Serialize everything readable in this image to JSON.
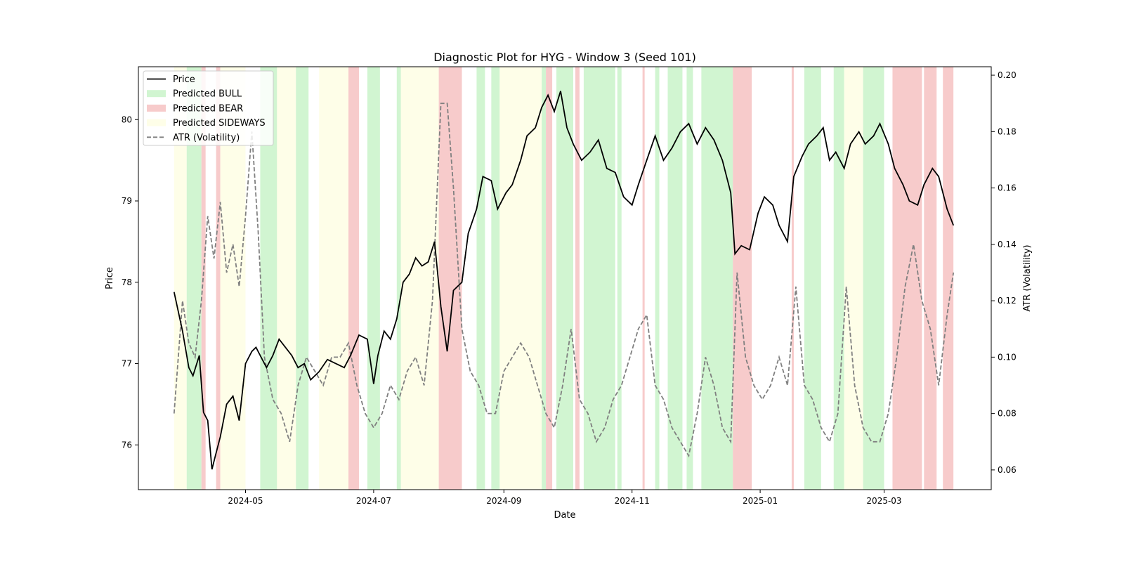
{
  "chart_data": {
    "type": "line",
    "title": "Diagnostic Plot for HYG - Window 3 (Seed 101)",
    "xlabel": "Date",
    "ylabel": "Price",
    "y2label": "ATR (Volatility)",
    "xlim": [
      "2024-03-11",
      "2025-04-21"
    ],
    "ylim": [
      75.45,
      80.65
    ],
    "y2lim": [
      0.053,
      0.203
    ],
    "x_ticks": [
      "2024-05-01",
      "2024-07-01",
      "2024-09-01",
      "2024-11-01",
      "2025-01-01",
      "2025-03-01"
    ],
    "x_tick_labels": [
      "2024-05",
      "2024-07",
      "2024-09",
      "2024-11",
      "2025-01",
      "2025-03"
    ],
    "y_ticks": [
      76,
      77,
      78,
      79,
      80
    ],
    "y2_ticks": [
      0.06,
      0.08,
      0.1,
      0.12,
      0.14,
      0.16,
      0.18,
      0.2
    ],
    "grid": false,
    "legend_position": "top-left",
    "legend": [
      {
        "label": "Price",
        "kind": "line",
        "color": "#000000"
      },
      {
        "label": "Predicted BULL",
        "kind": "patch",
        "color": "#d1f5d1"
      },
      {
        "label": "Predicted BEAR",
        "kind": "patch",
        "color": "#f7cbcb"
      },
      {
        "label": "Predicted SIDEWAYS",
        "kind": "patch",
        "color": "#fefee8"
      },
      {
        "label": "ATR (Volatility)",
        "kind": "dashed",
        "color": "#808080"
      }
    ],
    "colors": {
      "bull": "#d1f5d1",
      "bear": "#f7cbcb",
      "sideways": "#fefee8",
      "price": "#000000",
      "atr": "#808080"
    },
    "regimes": [
      {
        "start": "2024-03-28",
        "end": "2024-04-03",
        "state": "sideways"
      },
      {
        "start": "2024-04-03",
        "end": "2024-04-10",
        "state": "bull"
      },
      {
        "start": "2024-04-10",
        "end": "2024-04-12",
        "state": "bear"
      },
      {
        "start": "2024-04-17",
        "end": "2024-04-19",
        "state": "bear"
      },
      {
        "start": "2024-04-19",
        "end": "2024-05-01",
        "state": "sideways"
      },
      {
        "start": "2024-05-08",
        "end": "2024-05-16",
        "state": "bull"
      },
      {
        "start": "2024-05-16",
        "end": "2024-05-25",
        "state": "sideways"
      },
      {
        "start": "2024-05-25",
        "end": "2024-05-31",
        "state": "bull"
      },
      {
        "start": "2024-06-05",
        "end": "2024-06-19",
        "state": "sideways"
      },
      {
        "start": "2024-06-19",
        "end": "2024-06-24",
        "state": "bear"
      },
      {
        "start": "2024-06-28",
        "end": "2024-07-04",
        "state": "bull"
      },
      {
        "start": "2024-07-12",
        "end": "2024-07-14",
        "state": "bull"
      },
      {
        "start": "2024-07-14",
        "end": "2024-08-01",
        "state": "sideways"
      },
      {
        "start": "2024-08-01",
        "end": "2024-08-12",
        "state": "bear"
      },
      {
        "start": "2024-08-19",
        "end": "2024-08-23",
        "state": "bull"
      },
      {
        "start": "2024-08-26",
        "end": "2024-08-30",
        "state": "bull"
      },
      {
        "start": "2024-08-30",
        "end": "2024-09-19",
        "state": "sideways"
      },
      {
        "start": "2024-09-19",
        "end": "2024-09-21",
        "state": "bull"
      },
      {
        "start": "2024-09-21",
        "end": "2024-09-24",
        "state": "bear"
      },
      {
        "start": "2024-09-26",
        "end": "2024-10-04",
        "state": "bull"
      },
      {
        "start": "2024-10-05",
        "end": "2024-10-07",
        "state": "bear"
      },
      {
        "start": "2024-10-09",
        "end": "2024-10-24",
        "state": "bull"
      },
      {
        "start": "2024-10-25",
        "end": "2024-10-27",
        "state": "bull"
      },
      {
        "start": "2024-11-06",
        "end": "2024-11-07",
        "state": "bear"
      },
      {
        "start": "2024-11-12",
        "end": "2024-11-14",
        "state": "bull"
      },
      {
        "start": "2024-11-18",
        "end": "2024-11-25",
        "state": "bull"
      },
      {
        "start": "2024-11-27",
        "end": "2024-11-30",
        "state": "bull"
      },
      {
        "start": "2024-12-04",
        "end": "2024-12-19",
        "state": "bull"
      },
      {
        "start": "2024-12-19",
        "end": "2024-12-28",
        "state": "bear"
      },
      {
        "start": "2025-01-16",
        "end": "2025-01-17",
        "state": "bear"
      },
      {
        "start": "2025-01-22",
        "end": "2025-01-30",
        "state": "bull"
      },
      {
        "start": "2025-02-05",
        "end": "2025-02-10",
        "state": "bull"
      },
      {
        "start": "2025-02-10",
        "end": "2025-02-19",
        "state": "sideways"
      },
      {
        "start": "2025-02-19",
        "end": "2025-03-01",
        "state": "bull"
      },
      {
        "start": "2025-03-05",
        "end": "2025-03-19",
        "state": "bear"
      },
      {
        "start": "2025-03-20",
        "end": "2025-03-26",
        "state": "bear"
      },
      {
        "start": "2025-03-29",
        "end": "2025-04-03",
        "state": "bear"
      }
    ],
    "series": [
      {
        "name": "Price",
        "style": "solid",
        "x": [
          "2024-03-28",
          "2024-04-01",
          "2024-04-04",
          "2024-04-06",
          "2024-04-09",
          "2024-04-11",
          "2024-04-13",
          "2024-04-15",
          "2024-04-17",
          "2024-04-19",
          "2024-04-22",
          "2024-04-25",
          "2024-04-28",
          "2024-05-01",
          "2024-05-04",
          "2024-05-06",
          "2024-05-08",
          "2024-05-11",
          "2024-05-14",
          "2024-05-17",
          "2024-05-20",
          "2024-05-23",
          "2024-05-26",
          "2024-05-29",
          "2024-06-01",
          "2024-06-05",
          "2024-06-09",
          "2024-06-13",
          "2024-06-17",
          "2024-06-20",
          "2024-06-24",
          "2024-06-28",
          "2024-07-01",
          "2024-07-03",
          "2024-07-06",
          "2024-07-09",
          "2024-07-12",
          "2024-07-15",
          "2024-07-18",
          "2024-07-21",
          "2024-07-24",
          "2024-07-27",
          "2024-07-30",
          "2024-08-02",
          "2024-08-05",
          "2024-08-08",
          "2024-08-12",
          "2024-08-15",
          "2024-08-19",
          "2024-08-22",
          "2024-08-26",
          "2024-08-29",
          "2024-09-02",
          "2024-09-05",
          "2024-09-09",
          "2024-09-12",
          "2024-09-16",
          "2024-09-19",
          "2024-09-22",
          "2024-09-25",
          "2024-09-28",
          "2024-10-01",
          "2024-10-04",
          "2024-10-08",
          "2024-10-12",
          "2024-10-16",
          "2024-10-20",
          "2024-10-24",
          "2024-10-28",
          "2024-11-01",
          "2024-11-04",
          "2024-11-08",
          "2024-11-12",
          "2024-11-16",
          "2024-11-20",
          "2024-11-24",
          "2024-11-28",
          "2024-12-02",
          "2024-12-06",
          "2024-12-10",
          "2024-12-14",
          "2024-12-18",
          "2024-12-20",
          "2024-12-23",
          "2024-12-27",
          "2024-12-31",
          "2025-01-03",
          "2025-01-07",
          "2025-01-10",
          "2025-01-14",
          "2025-01-17",
          "2025-01-21",
          "2025-01-24",
          "2025-01-28",
          "2025-01-31",
          "2025-02-03",
          "2025-02-06",
          "2025-02-10",
          "2025-02-13",
          "2025-02-17",
          "2025-02-20",
          "2025-02-24",
          "2025-02-27",
          "2025-03-03",
          "2025-03-06",
          "2025-03-10",
          "2025-03-13",
          "2025-03-17",
          "2025-03-20",
          "2025-03-24",
          "2025-03-27",
          "2025-03-31",
          "2025-04-03"
        ],
        "values": [
          77.88,
          77.4,
          76.95,
          76.85,
          77.1,
          76.4,
          76.3,
          75.7,
          75.9,
          76.1,
          76.5,
          76.6,
          76.3,
          77.0,
          77.15,
          77.2,
          77.1,
          76.95,
          77.1,
          77.3,
          77.2,
          77.1,
          76.95,
          77.0,
          76.8,
          76.9,
          77.05,
          77.0,
          76.95,
          77.1,
          77.35,
          77.3,
          76.75,
          77.1,
          77.4,
          77.3,
          77.55,
          78.0,
          78.1,
          78.3,
          78.2,
          78.25,
          78.5,
          77.7,
          77.15,
          77.9,
          78.0,
          78.6,
          78.9,
          79.3,
          79.25,
          78.9,
          79.1,
          79.2,
          79.5,
          79.8,
          79.9,
          80.15,
          80.3,
          80.1,
          80.35,
          79.9,
          79.7,
          79.5,
          79.6,
          79.75,
          79.4,
          79.35,
          79.05,
          78.95,
          79.2,
          79.5,
          79.8,
          79.5,
          79.65,
          79.85,
          79.95,
          79.7,
          79.9,
          79.75,
          79.5,
          79.1,
          78.35,
          78.45,
          78.4,
          78.85,
          79.05,
          78.95,
          78.7,
          78.5,
          79.3,
          79.55,
          79.7,
          79.8,
          79.9,
          79.5,
          79.6,
          79.4,
          79.7,
          79.85,
          79.7,
          79.8,
          79.95,
          79.7,
          79.4,
          79.2,
          79.0,
          78.95,
          79.2,
          79.4,
          79.3,
          78.9,
          78.7
        ]
      },
      {
        "name": "ATR (Volatility)",
        "style": "dashed",
        "axis": "right",
        "x": [
          "2024-03-28",
          "2024-04-01",
          "2024-04-04",
          "2024-04-07",
          "2024-04-10",
          "2024-04-13",
          "2024-04-16",
          "2024-04-19",
          "2024-04-22",
          "2024-04-25",
          "2024-04-28",
          "2024-05-01",
          "2024-05-04",
          "2024-05-07",
          "2024-05-10",
          "2024-05-14",
          "2024-05-18",
          "2024-05-22",
          "2024-05-26",
          "2024-05-30",
          "2024-06-03",
          "2024-06-07",
          "2024-06-11",
          "2024-06-15",
          "2024-06-19",
          "2024-06-23",
          "2024-06-27",
          "2024-07-01",
          "2024-07-05",
          "2024-07-09",
          "2024-07-13",
          "2024-07-17",
          "2024-07-21",
          "2024-07-25",
          "2024-07-29",
          "2024-08-02",
          "2024-08-05",
          "2024-08-08",
          "2024-08-12",
          "2024-08-16",
          "2024-08-20",
          "2024-08-24",
          "2024-08-28",
          "2024-09-01",
          "2024-09-05",
          "2024-09-09",
          "2024-09-13",
          "2024-09-17",
          "2024-09-21",
          "2024-09-25",
          "2024-09-29",
          "2024-10-03",
          "2024-10-07",
          "2024-10-11",
          "2024-10-15",
          "2024-10-19",
          "2024-10-23",
          "2024-10-27",
          "2024-10-31",
          "2024-11-04",
          "2024-11-08",
          "2024-11-12",
          "2024-11-16",
          "2024-11-20",
          "2024-11-24",
          "2024-11-28",
          "2024-12-02",
          "2024-12-06",
          "2024-12-10",
          "2024-12-14",
          "2024-12-18",
          "2024-12-21",
          "2024-12-25",
          "2024-12-29",
          "2025-01-02",
          "2025-01-06",
          "2025-01-10",
          "2025-01-14",
          "2025-01-18",
          "2025-01-22",
          "2025-01-26",
          "2025-01-30",
          "2025-02-03",
          "2025-02-07",
          "2025-02-11",
          "2025-02-15",
          "2025-02-19",
          "2025-02-23",
          "2025-02-27",
          "2025-03-03",
          "2025-03-07",
          "2025-03-11",
          "2025-03-15",
          "2025-03-19",
          "2025-03-23",
          "2025-03-27",
          "2025-03-31",
          "2025-04-03"
        ],
        "values": [
          0.08,
          0.12,
          0.105,
          0.1,
          0.12,
          0.15,
          0.135,
          0.155,
          0.13,
          0.14,
          0.125,
          0.15,
          0.18,
          0.145,
          0.1,
          0.085,
          0.08,
          0.07,
          0.09,
          0.1,
          0.095,
          0.09,
          0.1,
          0.1,
          0.105,
          0.09,
          0.08,
          0.075,
          0.08,
          0.09,
          0.085,
          0.095,
          0.1,
          0.09,
          0.12,
          0.19,
          0.19,
          0.16,
          0.11,
          0.095,
          0.09,
          0.08,
          0.08,
          0.095,
          0.1,
          0.105,
          0.1,
          0.09,
          0.08,
          0.075,
          0.09,
          0.11,
          0.085,
          0.08,
          0.07,
          0.075,
          0.085,
          0.09,
          0.1,
          0.11,
          0.115,
          0.09,
          0.085,
          0.075,
          0.07,
          0.065,
          0.08,
          0.1,
          0.09,
          0.075,
          0.07,
          0.13,
          0.1,
          0.09,
          0.085,
          0.09,
          0.1,
          0.09,
          0.125,
          0.09,
          0.085,
          0.075,
          0.07,
          0.08,
          0.125,
          0.09,
          0.075,
          0.07,
          0.07,
          0.08,
          0.1,
          0.125,
          0.14,
          0.12,
          0.11,
          0.09,
          0.115,
          0.13
        ]
      }
    ]
  }
}
